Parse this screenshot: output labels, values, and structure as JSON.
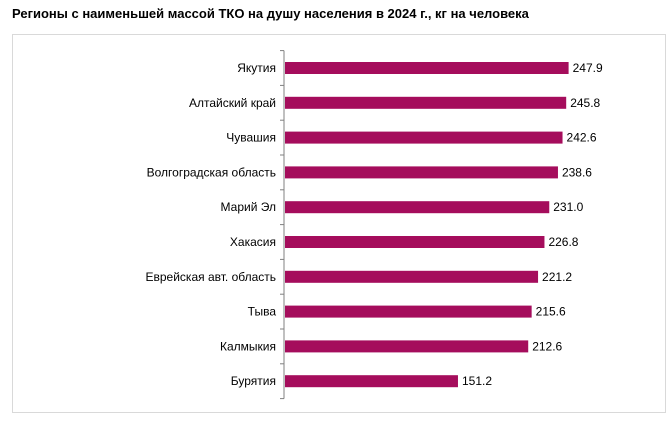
{
  "chart_data": {
    "type": "bar",
    "orientation": "horizontal",
    "title": "Регионы с наименьшей массой ТКО на душу населения в 2024 г., кг на человека",
    "categories": [
      "Якутия",
      "Алтайский край",
      "Чувашия",
      "Волгоградская область",
      "Марий Эл",
      "Хакасия",
      "Еврейская авт. область",
      "Тыва",
      "Калмыкия",
      "Бурятия"
    ],
    "values": [
      247.9,
      245.8,
      242.6,
      238.6,
      231.0,
      226.8,
      221.2,
      215.6,
      212.6,
      151.2
    ],
    "value_labels": [
      "247.9",
      "245.8",
      "242.6",
      "238.6",
      "231.0",
      "226.8",
      "221.2",
      "215.6",
      "212.6",
      "151.2"
    ],
    "xlim": [
      0,
      250
    ],
    "grid": false,
    "legend": "none",
    "bar_color": "#a50d5c"
  }
}
